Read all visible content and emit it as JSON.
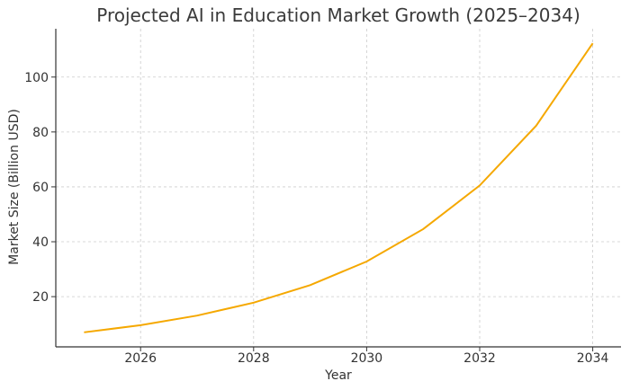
{
  "chart_data": {
    "type": "line",
    "title": "Projected AI in Education Market Growth (2025–2034)",
    "xlabel": "Year",
    "ylabel": "Market Size (Billion USD)",
    "x": [
      2025,
      2026,
      2027,
      2028,
      2029,
      2030,
      2031,
      2032,
      2033,
      2034
    ],
    "series": [
      {
        "values": [
          7.0,
          9.6,
          13.1,
          17.8,
          24.2,
          32.8,
          44.6,
          60.5,
          82.3,
          112.3
        ]
      }
    ],
    "x_ticks": [
      "2026",
      "2028",
      "2030",
      "2032",
      "2034"
    ],
    "y_ticks": [
      "20",
      "40",
      "60",
      "80",
      "100"
    ],
    "xlim": [
      2024.5,
      2034.5
    ],
    "ylim": [
      1.7,
      117.6
    ],
    "grid": true,
    "legend": "none",
    "line_color": "#f5a800"
  }
}
